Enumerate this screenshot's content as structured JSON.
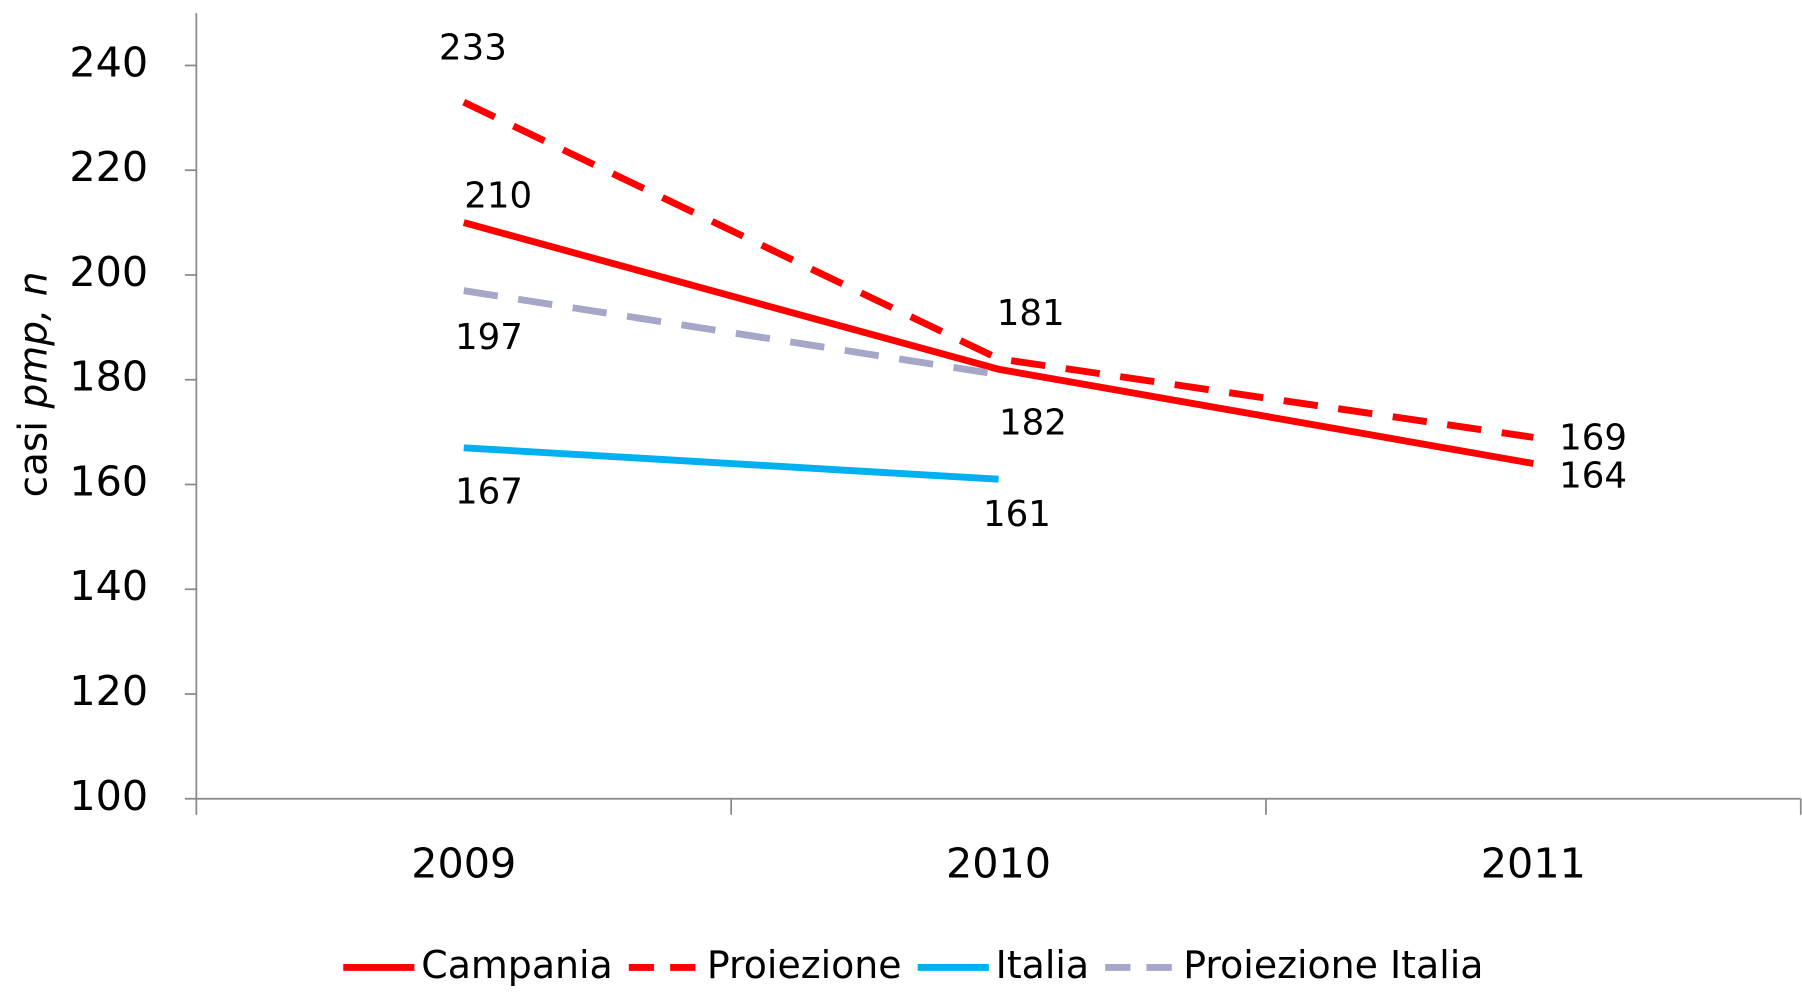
{
  "chart_data": {
    "type": "line",
    "y_label": "casi pmp, n",
    "categories": [
      "2009",
      "2010",
      "2011"
    ],
    "series": [
      {
        "name": "Campania",
        "color": "#ff0000",
        "dash": false,
        "values": [
          210,
          182,
          164
        ],
        "value_labels": [
          210,
          182,
          164
        ]
      },
      {
        "name": "Proiezione",
        "color": "#ff0000",
        "dash": true,
        "values": [
          233,
          184,
          169
        ],
        "value_labels": [
          233,
          null,
          169
        ]
      },
      {
        "name": "Italia",
        "color": "#00b0f0",
        "dash": false,
        "values": [
          167,
          161,
          null
        ],
        "value_labels": [
          167,
          161,
          null
        ]
      },
      {
        "name": "Proiezione Italia",
        "color": "#a6a6c8",
        "dash": true,
        "values": [
          197,
          181,
          null
        ],
        "value_labels": [
          197,
          181,
          null
        ]
      }
    ],
    "ylim": [
      100,
      250
    ],
    "yticks": [
      100,
      120,
      140,
      160,
      180,
      200,
      220,
      240
    ],
    "grid": false,
    "legend": "bottom"
  }
}
